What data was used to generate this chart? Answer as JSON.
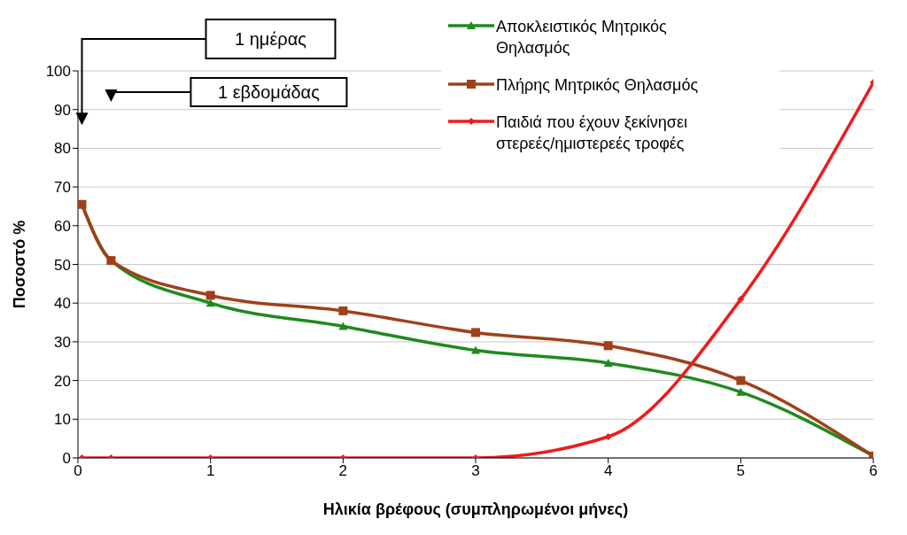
{
  "chart_data": {
    "type": "line",
    "xlabel": "Ηλικία  βρέφους (συμπληρωμένοι μήνες)",
    "ylabel": "Ποσοστό %",
    "x": [
      0.03,
      0.25,
      1,
      2,
      3,
      4,
      5,
      6
    ],
    "series": [
      {
        "name": "Αποκλειστικός Μητρικός Θηλασμός",
        "color": "#1e8a1e",
        "marker": "triangle",
        "values": [
          65.5,
          51,
          40,
          34,
          27.8,
          24.5,
          17,
          0.5
        ]
      },
      {
        "name": "Πλήρης  Μητρικός Θηλασμός",
        "color": "#a0401a",
        "marker": "square",
        "values": [
          65.5,
          51,
          42,
          38,
          32.4,
          29,
          20,
          0.5
        ]
      },
      {
        "name": "Παιδιά  που  έχουν  ξεκίνησει στερεές/ημιστερεές  τροφές",
        "color": "#ee1c1c",
        "marker": "diamond",
        "values": [
          0,
          0,
          0,
          0,
          0,
          5.5,
          41,
          97
        ]
      }
    ],
    "xlim": [
      0,
      6
    ],
    "xticks": [
      0,
      1,
      2,
      3,
      4,
      5,
      6
    ],
    "ylim": [
      0,
      100
    ],
    "yticks": [
      0,
      10,
      20,
      30,
      40,
      50,
      60,
      70,
      80,
      90,
      100
    ],
    "grid": "y",
    "legend": "top right",
    "line_style": "solid",
    "annotations": [
      "1 ημέρας",
      "1 εβδομάδας"
    ]
  }
}
